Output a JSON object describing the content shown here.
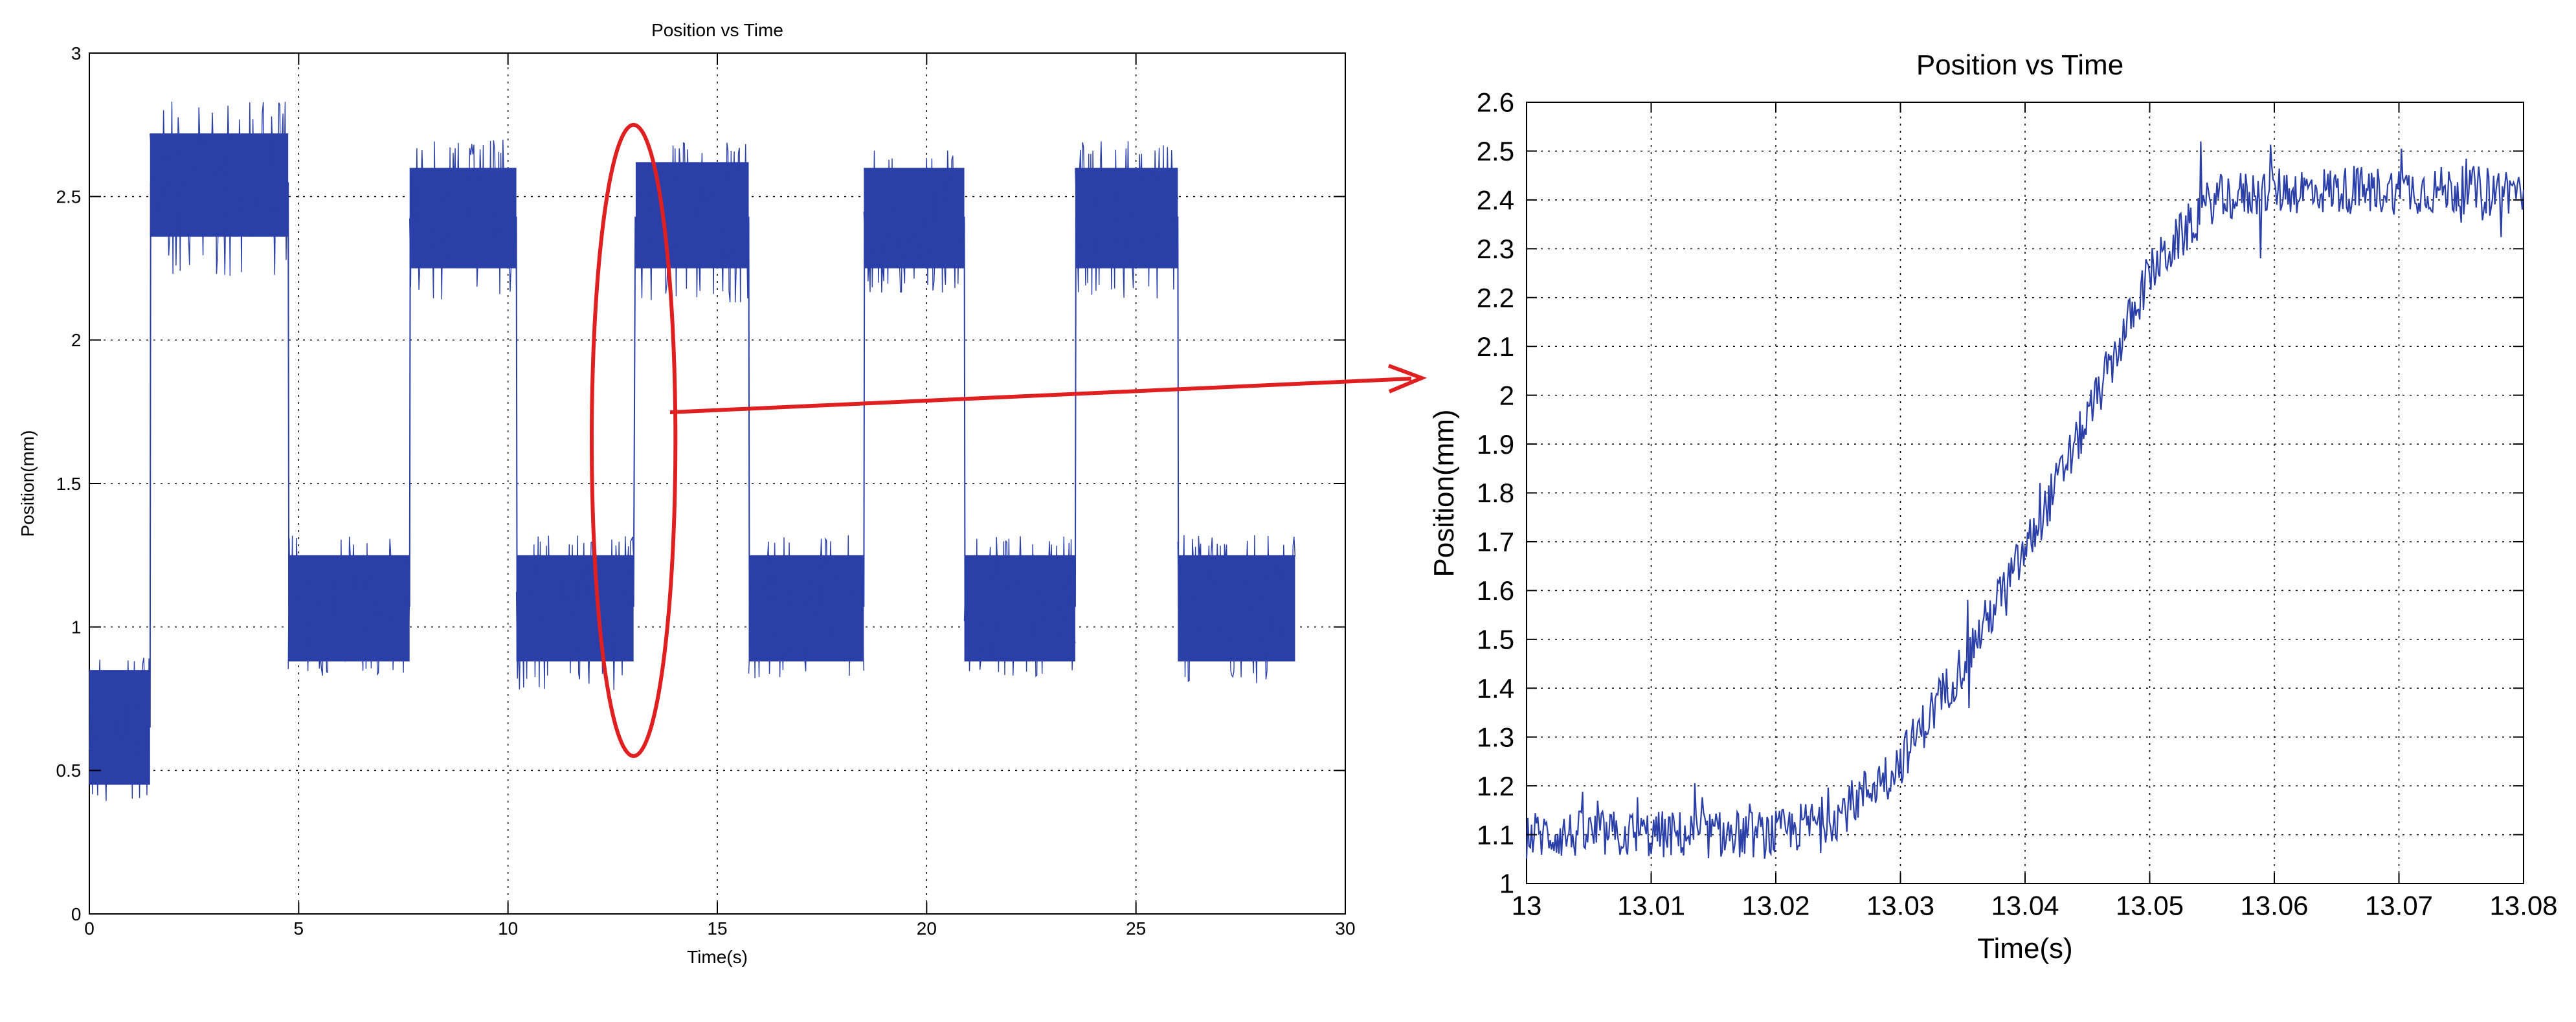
{
  "chart_data": [
    {
      "type": "line",
      "title": "Position vs Time",
      "xlabel": "Time(s)",
      "ylabel": "Position(mm)",
      "xlim": [
        0,
        30
      ],
      "ylim": [
        0,
        3
      ],
      "xticks": [
        "0",
        "5",
        "10",
        "15",
        "20",
        "25",
        "30"
      ],
      "yticks": [
        "0",
        "0.5",
        "1",
        "1.5",
        "2",
        "2.5",
        "3"
      ],
      "grid": true,
      "color": "#2b3fa8",
      "series": [
        {
          "segments": [
            {
              "x": [
                0.0,
                1.45
              ],
              "center": 0.65,
              "band": [
                0.45,
                0.85
              ],
              "spread": [
                0.38,
                0.9
              ]
            },
            {
              "x": [
                1.45,
                4.75
              ],
              "center": 2.55,
              "band": [
                2.36,
                2.72
              ],
              "spread": [
                2.22,
                2.84
              ]
            },
            {
              "x": [
                4.75,
                7.65
              ],
              "center": 1.07,
              "band": [
                0.88,
                1.25
              ],
              "spread": [
                0.83,
                1.32
              ]
            },
            {
              "x": [
                7.65,
                10.2
              ],
              "center": 2.43,
              "band": [
                2.25,
                2.6
              ],
              "spread": [
                2.14,
                2.7
              ]
            },
            {
              "x": [
                10.2,
                13.0
              ],
              "center": 1.07,
              "band": [
                0.88,
                1.25
              ],
              "spread": [
                0.78,
                1.32
              ]
            },
            {
              "x": [
                13.05,
                15.75
              ],
              "center": 2.43,
              "band": [
                2.25,
                2.62
              ],
              "spread": [
                2.13,
                2.69
              ]
            },
            {
              "x": [
                15.75,
                18.5
              ],
              "center": 1.07,
              "band": [
                0.88,
                1.25
              ],
              "spread": [
                0.82,
                1.32
              ]
            },
            {
              "x": [
                18.5,
                20.9
              ],
              "center": 2.43,
              "band": [
                2.25,
                2.6
              ],
              "spread": [
                2.16,
                2.66
              ]
            },
            {
              "x": [
                20.9,
                23.55
              ],
              "center": 1.07,
              "band": [
                0.88,
                1.25
              ],
              "spread": [
                0.82,
                1.32
              ]
            },
            {
              "x": [
                23.55,
                26.0
              ],
              "center": 2.43,
              "band": [
                2.25,
                2.6
              ],
              "spread": [
                2.14,
                2.7
              ]
            },
            {
              "x": [
                26.0,
                28.8
              ],
              "center": 1.07,
              "band": [
                0.88,
                1.25
              ],
              "spread": [
                0.8,
                1.32
              ]
            }
          ]
        }
      ],
      "annotation": {
        "type": "ellipse",
        "color": "#e02020",
        "center": [
          13.0,
          1.65
        ],
        "radii": [
          1.0,
          1.1
        ]
      }
    },
    {
      "type": "line",
      "title": "Position vs Time",
      "xlabel": "Time(s)",
      "ylabel": "Position(mm)",
      "xlim": [
        13.0,
        13.08
      ],
      "ylim": [
        1.0,
        2.6
      ],
      "xticks": [
        "13",
        "13.01",
        "13.02",
        "13.03",
        "13.04",
        "13.05",
        "13.06",
        "13.07",
        "13.08"
      ],
      "yticks": [
        "1",
        "1.1",
        "1.2",
        "1.3",
        "1.4",
        "1.5",
        "1.6",
        "1.7",
        "1.8",
        "1.9",
        "2",
        "2.1",
        "2.2",
        "2.3",
        "2.4",
        "2.5",
        "2.6"
      ],
      "grid": true,
      "color": "#2b3fa8",
      "series": [
        {
          "trend_x": [
            13.0,
            13.01,
            13.02,
            13.025,
            13.03,
            13.035,
            13.04,
            13.045,
            13.05,
            13.055,
            13.06,
            13.07,
            13.08
          ],
          "trend_y": [
            1.1,
            1.1,
            1.1,
            1.14,
            1.25,
            1.45,
            1.68,
            1.95,
            2.25,
            2.4,
            2.42,
            2.42,
            2.42
          ],
          "noise": 0.05
        }
      ]
    }
  ],
  "arrow_color": "#e02020"
}
